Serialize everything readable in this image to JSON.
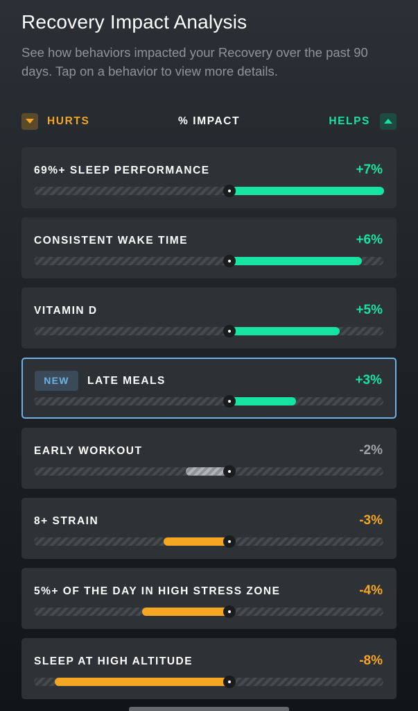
{
  "header": {
    "title": "Recovery Impact Analysis",
    "subtitle": "See how behaviors impacted your Recovery over the past 90 days. Tap on a behavior to view more details."
  },
  "legend": {
    "hurts_label": "HURTS",
    "impact_label": "% IMPACT",
    "helps_label": "HELPS"
  },
  "colors": {
    "helps": "#16e4a0",
    "hurts": "#f5a623",
    "neutral": "#9ea3a8",
    "highlight_border": "#6fb1e4"
  },
  "behaviors": [
    {
      "label": "69%+ SLEEP PERFORMANCE",
      "value_text": "+7%",
      "impact": 7,
      "kind": "helps",
      "badge": ""
    },
    {
      "label": "CONSISTENT WAKE TIME",
      "value_text": "+6%",
      "impact": 6,
      "kind": "helps",
      "badge": ""
    },
    {
      "label": "VITAMIN D",
      "value_text": "+5%",
      "impact": 5,
      "kind": "helps",
      "badge": ""
    },
    {
      "label": "LATE MEALS",
      "value_text": "+3%",
      "impact": 3,
      "kind": "helps",
      "badge": "NEW"
    },
    {
      "label": "EARLY WORKOUT",
      "value_text": "-2%",
      "impact": -2,
      "kind": "neutral",
      "badge": ""
    },
    {
      "label": "8+ STRAIN",
      "value_text": "-3%",
      "impact": -3,
      "kind": "hurts",
      "badge": ""
    },
    {
      "label": "5%+ OF THE DAY IN HIGH STRESS ZONE",
      "value_text": "-4%",
      "impact": -4,
      "kind": "hurts",
      "badge": ""
    },
    {
      "label": "SLEEP AT HIGH ALTITUDE",
      "value_text": "-8%",
      "impact": -8,
      "kind": "hurts",
      "badge": ""
    }
  ]
}
